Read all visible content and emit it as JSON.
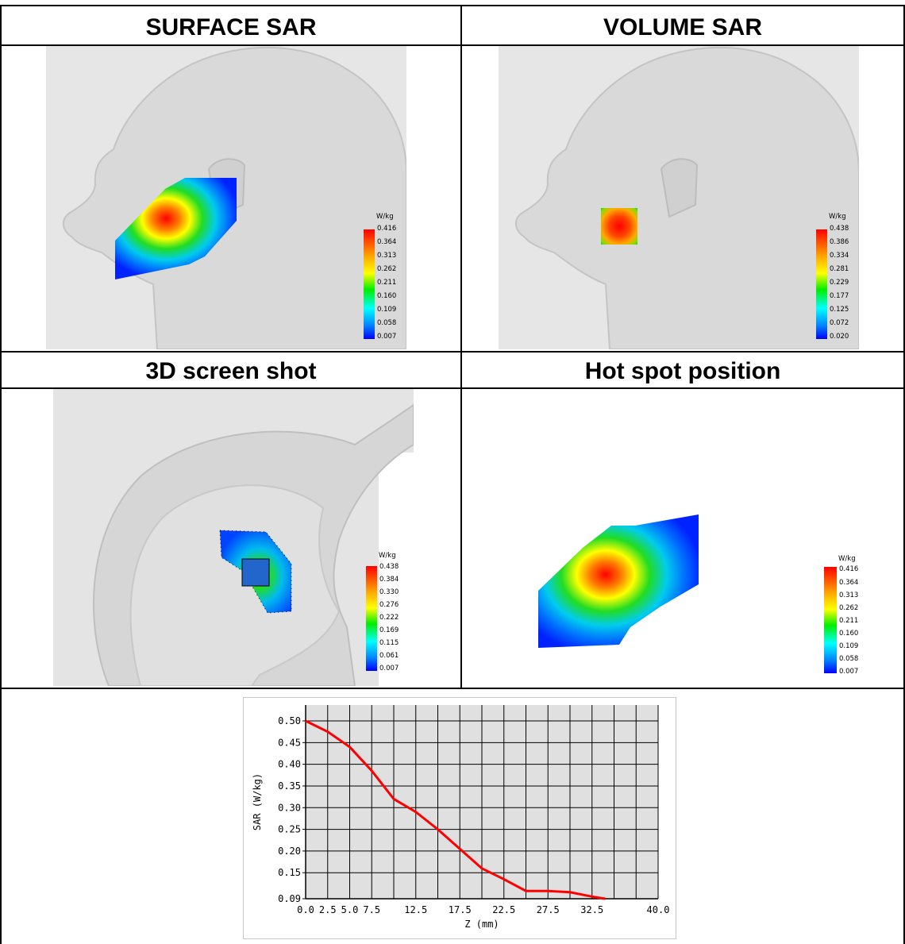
{
  "panels": {
    "surface": {
      "title": "SURFACE SAR",
      "legend": {
        "unit": "W/kg",
        "values": [
          "0.416",
          "0.364",
          "0.313",
          "0.262",
          "0.211",
          "0.160",
          "0.109",
          "0.058",
          "0.007"
        ]
      }
    },
    "volume": {
      "title": "VOLUME SAR",
      "legend": {
        "unit": "W/kg",
        "values": [
          "0.438",
          "0.386",
          "0.334",
          "0.281",
          "0.229",
          "0.177",
          "0.125",
          "0.072",
          "0.020"
        ]
      }
    },
    "shot3d": {
      "title": "3D screen shot",
      "legend": {
        "unit": "W/kg",
        "values": [
          "0.438",
          "0.384",
          "0.330",
          "0.276",
          "0.222",
          "0.169",
          "0.115",
          "0.061",
          "0.007"
        ]
      }
    },
    "hotspot": {
      "title": "Hot spot position",
      "legend": {
        "unit": "W/kg",
        "values": [
          "0.416",
          "0.364",
          "0.313",
          "0.262",
          "0.211",
          "0.160",
          "0.109",
          "0.058",
          "0.007"
        ]
      }
    }
  },
  "colors": {
    "scale": [
      "#ff0000",
      "#ff8800",
      "#ffff00",
      "#00dd00",
      "#00ffff",
      "#0066ff",
      "#0000ff"
    ],
    "curve": "#ff0000",
    "plot_bg": "#e0e0e0",
    "head": "#e3e3e3"
  },
  "chart_data": {
    "type": "line",
    "title": "",
    "xlabel": "Z (mm)",
    "ylabel": "SAR (W/kg)",
    "xlim": [
      0,
      40
    ],
    "ylim": [
      0.09,
      0.5
    ],
    "x_ticks": [
      "0.0",
      "2.5",
      "5.0",
      "7.5",
      "12.5",
      "17.5",
      "22.5",
      "27.5",
      "32.5",
      "40.0"
    ],
    "x_tick_values": [
      0,
      2.5,
      5,
      7.5,
      12.5,
      17.5,
      22.5,
      27.5,
      32.5,
      40
    ],
    "y_ticks": [
      "0.50",
      "0.45",
      "0.40",
      "0.35",
      "0.30",
      "0.25",
      "0.20",
      "0.15",
      "0.09"
    ],
    "y_tick_values": [
      0.5,
      0.45,
      0.4,
      0.35,
      0.3,
      0.25,
      0.2,
      0.15,
      0.09
    ],
    "grid": true,
    "series": [
      {
        "x": [
          0,
          2.5,
          5,
          7.5,
          10,
          12.5,
          15,
          17.5,
          20,
          22.5,
          25,
          27.5,
          30,
          32.5,
          34
        ],
        "values": [
          0.5,
          0.475,
          0.44,
          0.385,
          0.32,
          0.29,
          0.25,
          0.205,
          0.16,
          0.135,
          0.108,
          0.108,
          0.105,
          0.095,
          0.09
        ]
      }
    ]
  }
}
